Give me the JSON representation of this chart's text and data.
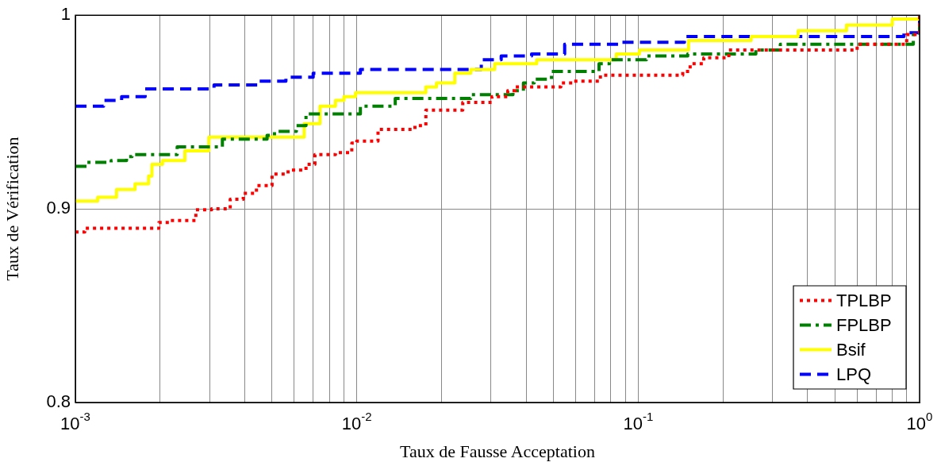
{
  "chart_data": {
    "type": "step",
    "xlabel": "Taux de Fausse Acceptation",
    "ylabel": "Taux de Vérification",
    "log": "x",
    "grid": true,
    "legend": "bottom right",
    "xlim": [
      0.001,
      1
    ],
    "ylim": [
      0.8,
      1
    ],
    "xticks": [
      {
        "value": 0.001,
        "label": "10$^{-3}$"
      },
      {
        "value": 0.002,
        "label": null
      },
      {
        "value": 0.003,
        "label": null
      },
      {
        "value": 0.004,
        "label": null
      },
      {
        "value": 0.005,
        "label": null
      },
      {
        "value": 0.006,
        "label": null
      },
      {
        "value": 0.007,
        "label": null
      },
      {
        "value": 0.008,
        "label": null
      },
      {
        "value": 0.009,
        "label": null
      },
      {
        "value": 0.01,
        "label": "10$^{-2}$"
      },
      {
        "value": 0.02,
        "label": null
      },
      {
        "value": 0.03,
        "label": null
      },
      {
        "value": 0.04,
        "label": null
      },
      {
        "value": 0.05,
        "label": null
      },
      {
        "value": 0.06,
        "label": null
      },
      {
        "value": 0.07,
        "label": null
      },
      {
        "value": 0.08,
        "label": null
      },
      {
        "value": 0.09,
        "label": null
      },
      {
        "value": 0.1,
        "label": "10$^{-1}$"
      },
      {
        "value": 0.2,
        "label": null
      },
      {
        "value": 0.3,
        "label": null
      },
      {
        "value": 0.4,
        "label": null
      },
      {
        "value": 0.5,
        "label": null
      },
      {
        "value": 0.6,
        "label": null
      },
      {
        "value": 0.7,
        "label": null
      },
      {
        "value": 0.8,
        "label": null
      },
      {
        "value": 0.9,
        "label": null
      },
      {
        "value": 1,
        "label": "10$^{0}$"
      }
    ],
    "yticks": [
      0.8,
      0.9,
      1
    ],
    "series": [
      {
        "name": "TPLBP",
        "color": "#ff0000",
        "line_style": "dotted",
        "x": [
          0.001,
          0.00108,
          0.00198,
          0.00215,
          0.00268,
          0.00305,
          0.00355,
          0.00395,
          0.0044,
          0.005,
          0.0057,
          0.0066,
          0.0071,
          0.0084,
          0.0096,
          0.01,
          0.0119,
          0.0161,
          0.0176,
          0.0238,
          0.0277,
          0.0302,
          0.0344,
          0.0367,
          0.0531,
          0.0585,
          0.0734,
          0.144,
          0.153,
          0.171,
          0.21,
          0.6,
          0.9,
          1
        ],
        "values": [
          0.888,
          0.89,
          0.893,
          0.894,
          0.8995,
          0.9,
          0.905,
          0.908,
          0.912,
          0.918,
          0.92,
          0.923,
          0.928,
          0.929,
          0.934,
          0.935,
          0.941,
          0.943,
          0.951,
          0.955,
          0.955,
          0.958,
          0.961,
          0.963,
          0.965,
          0.966,
          0.969,
          0.971,
          0.975,
          0.978,
          0.982,
          0.985,
          0.99,
          1
        ]
      },
      {
        "name": "FPLBP",
        "color": "#008000",
        "line_style": "dashdot",
        "x": [
          0.001,
          0.0011,
          0.00134,
          0.00152,
          0.00159,
          0.0023,
          0.00333,
          0.0048,
          0.0051,
          0.0061,
          0.0066,
          0.0103,
          0.0137,
          0.0254,
          0.0359,
          0.0391,
          0.0427,
          0.0492,
          0.0726,
          0.0791,
          0.107,
          0.15,
          0.262,
          0.32,
          0.95,
          1
        ],
        "values": [
          0.922,
          0.924,
          0.925,
          0.927,
          0.928,
          0.932,
          0.936,
          0.938,
          0.94,
          0.943,
          0.949,
          0.953,
          0.957,
          0.959,
          0.961,
          0.965,
          0.967,
          0.971,
          0.975,
          0.977,
          0.979,
          0.98,
          0.982,
          0.985,
          0.99,
          1
        ]
      },
      {
        "name": "Bsif",
        "color": "#ffff00",
        "line_style": "solid",
        "x": [
          0.001,
          0.0012,
          0.0014,
          0.00163,
          0.00182,
          0.00187,
          0.00204,
          0.00245,
          0.00298,
          0.0065,
          0.0074,
          0.0084,
          0.009,
          0.0099,
          0.0176,
          0.0192,
          0.0223,
          0.0254,
          0.0309,
          0.0436,
          0.0836,
          0.101,
          0.151,
          0.252,
          0.37,
          0.55,
          0.8,
          1
        ],
        "values": [
          0.904,
          0.906,
          0.91,
          0.913,
          0.917,
          0.923,
          0.925,
          0.93,
          0.937,
          0.944,
          0.953,
          0.956,
          0.958,
          0.96,
          0.963,
          0.965,
          0.97,
          0.972,
          0.975,
          0.977,
          0.98,
          0.982,
          0.987,
          0.989,
          0.992,
          0.995,
          0.998,
          1
        ]
      },
      {
        "name": "LPQ",
        "color": "#0000ff",
        "line_style": "dashed",
        "x": [
          0.001,
          0.00126,
          0.00146,
          0.00177,
          0.00311,
          0.0045,
          0.0056,
          0.007,
          0.0103,
          0.0277,
          0.0326,
          0.0418,
          0.0548,
          0.0863,
          0.146,
          0.88,
          1
        ],
        "values": [
          0.953,
          0.956,
          0.958,
          0.962,
          0.964,
          0.966,
          0.968,
          0.97,
          0.972,
          0.977,
          0.979,
          0.98,
          0.985,
          0.986,
          0.989,
          0.991,
          1
        ]
      }
    ]
  }
}
